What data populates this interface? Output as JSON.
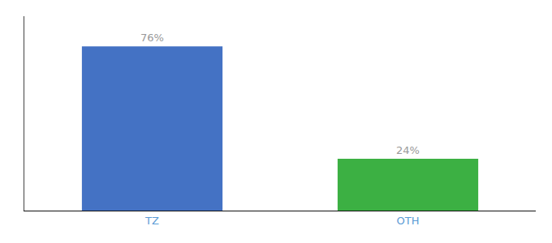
{
  "chart_data": {
    "type": "bar",
    "categories": [
      "TZ",
      "OTH"
    ],
    "values": [
      76,
      24
    ],
    "value_labels": [
      "76%",
      "24%"
    ],
    "colors": [
      "#4472c4",
      "#3cb043"
    ],
    "ylim": [
      0,
      90
    ],
    "grid": false,
    "data_labels": true,
    "tick_labels": "x"
  }
}
